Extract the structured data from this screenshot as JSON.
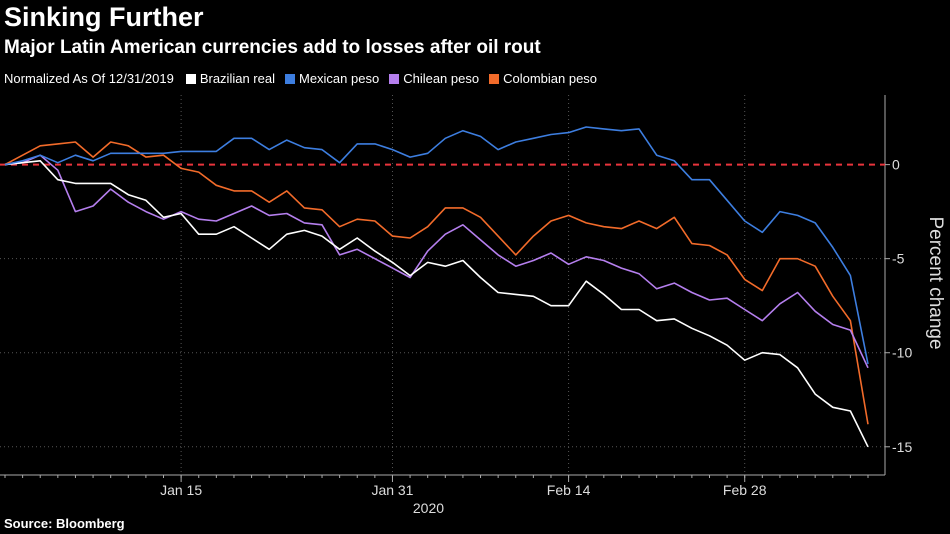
{
  "title": "Sinking Further",
  "subtitle": "Major Latin American currencies add to losses after oil rout",
  "legend_note": "Normalized As Of 12/31/2019",
  "source": "Source: Bloomberg",
  "chart_data": {
    "type": "line",
    "ylabel": "Percent change",
    "xlabel": "2020",
    "ylim": [
      -16.5,
      3.7
    ],
    "y_ticks": [
      0,
      -5,
      -10,
      -15
    ],
    "x_ticks": [
      {
        "label": "Jan 15",
        "index": 10
      },
      {
        "label": "Jan 31",
        "index": 22
      },
      {
        "label": "Feb 14",
        "index": 32
      },
      {
        "label": "Feb 28",
        "index": 42
      }
    ],
    "reference_line": {
      "value": 0,
      "color": "#e8343c",
      "style": "dashed"
    },
    "grid": true,
    "series": [
      {
        "name": "Brazilian real",
        "color": "#ffffff",
        "values": [
          0,
          0.1,
          0.2,
          -0.8,
          -1.0,
          -1.0,
          -1.0,
          -1.6,
          -1.9,
          -2.8,
          -2.6,
          -3.7,
          -3.7,
          -3.3,
          -3.9,
          -4.5,
          -3.7,
          -3.5,
          -3.8,
          -4.5,
          -3.9,
          -4.6,
          -5.2,
          -5.9,
          -5.2,
          -5.4,
          -5.1,
          -6.0,
          -6.8,
          -6.9,
          -7.0,
          -7.5,
          -7.5,
          -6.2,
          -6.9,
          -7.7,
          -7.7,
          -8.3,
          -8.2,
          -8.7,
          -9.1,
          -9.6,
          -10.4,
          -10.0,
          -10.1,
          -10.8,
          -12.2,
          -12.9,
          -13.1,
          -15.0
        ]
      },
      {
        "name": "Mexican peso",
        "color": "#3d7ee0",
        "values": [
          0,
          0.2,
          0.5,
          0.1,
          0.5,
          0.2,
          0.6,
          0.6,
          0.6,
          0.6,
          0.7,
          0.7,
          0.7,
          1.4,
          1.4,
          0.8,
          1.3,
          0.9,
          0.8,
          0.1,
          1.1,
          1.1,
          0.8,
          0.4,
          0.6,
          1.4,
          1.8,
          1.5,
          0.8,
          1.2,
          1.4,
          1.6,
          1.7,
          2.0,
          1.9,
          1.8,
          1.9,
          0.5,
          0.2,
          -0.8,
          -0.8,
          -1.9,
          -3.0,
          -3.6,
          -2.5,
          -2.7,
          -3.1,
          -4.4,
          -5.9,
          -10.6
        ]
      },
      {
        "name": "Chilean peso",
        "color": "#b57fee",
        "values": [
          0,
          0.1,
          0.5,
          -0.3,
          -2.5,
          -2.2,
          -1.3,
          -2.0,
          -2.5,
          -2.9,
          -2.5,
          -2.9,
          -3.0,
          -2.6,
          -2.2,
          -2.7,
          -2.6,
          -3.1,
          -3.2,
          -4.8,
          -4.5,
          -5.0,
          -5.5,
          -6.0,
          -4.6,
          -3.7,
          -3.2,
          -4.0,
          -4.8,
          -5.4,
          -5.1,
          -4.7,
          -5.3,
          -4.9,
          -5.1,
          -5.5,
          -5.8,
          -6.6,
          -6.3,
          -6.8,
          -7.2,
          -7.1,
          -7.7,
          -8.3,
          -7.4,
          -6.8,
          -7.8,
          -8.5,
          -8.8,
          -10.8
        ]
      },
      {
        "name": "Colombian peso",
        "color": "#f26b2a",
        "values": [
          0,
          0.5,
          1.0,
          1.1,
          1.2,
          0.4,
          1.2,
          1.0,
          0.4,
          0.5,
          -0.2,
          -0.4,
          -1.1,
          -1.4,
          -1.4,
          -2.0,
          -1.4,
          -2.3,
          -2.4,
          -3.3,
          -2.9,
          -3.0,
          -3.8,
          -3.9,
          -3.3,
          -2.3,
          -2.3,
          -2.8,
          -3.8,
          -4.8,
          -3.8,
          -3.0,
          -2.7,
          -3.1,
          -3.3,
          -3.4,
          -3.0,
          -3.4,
          -2.8,
          -4.2,
          -4.3,
          -4.8,
          -6.1,
          -6.7,
          -5.0,
          -5.0,
          -5.4,
          -7.0,
          -8.3,
          -13.8
        ]
      }
    ]
  }
}
